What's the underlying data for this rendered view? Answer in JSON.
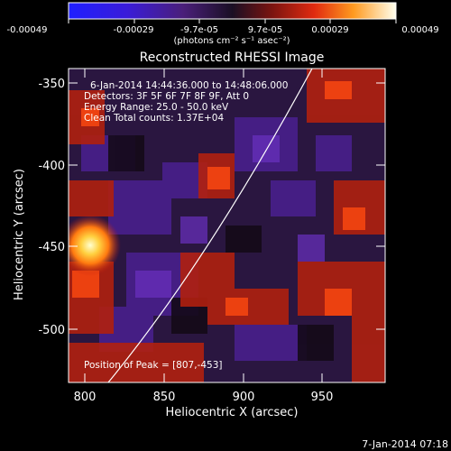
{
  "colorbar": {
    "tick_labels": [
      "-0.00049",
      "-0.00029",
      "-9.7e-05",
      "9.7e-05",
      "0.00029",
      "0.00049"
    ],
    "units_label": "(photons cm⁻² s⁻¹ asec⁻²)"
  },
  "title": "Reconstructed RHESSI Image",
  "annotations": {
    "line1": "6-Jan-2014 14:44:36.000 to 14:48:06.000",
    "line2": "Detectors: 3F 5F 6F 7F 8F 9F, Att 0",
    "line3": "Energy Range: 25.0 - 50.0 keV",
    "line4": "Clean     Total counts: 1.37E+04",
    "peak": "Position of Peak = [807,-453]"
  },
  "axes": {
    "xlabel": "Heliocentric X (arcsec)",
    "ylabel": "Heliocentric Y (arcsec)",
    "xticks": [
      "800",
      "850",
      "900",
      "950"
    ],
    "yticks": [
      "-350",
      "-400",
      "-450",
      "-500"
    ]
  },
  "footer": {
    "date": "7-Jan-2014 07:18"
  },
  "colors": {
    "background": "#000000",
    "limb_line": "#ffffff"
  }
}
